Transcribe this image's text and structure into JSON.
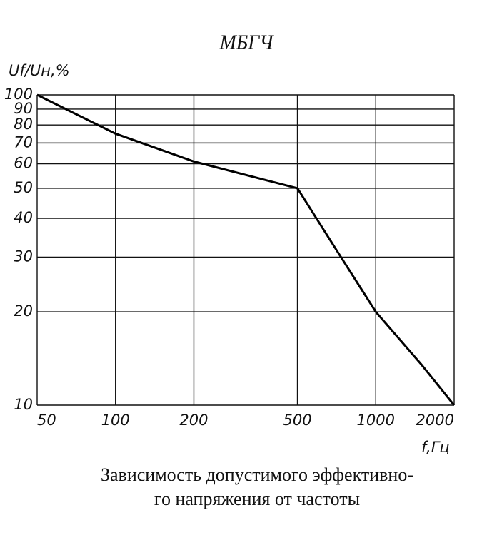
{
  "chart_data": {
    "type": "line",
    "title": "МБГЧ",
    "y_label": "Uf/Uн,%",
    "x_label": "f,Гц",
    "caption": [
      "Зависимость допустимого эффективно-",
      "го напряжения от частоты"
    ],
    "x": [
      50,
      100,
      200,
      500,
      700,
      1000,
      1500,
      2000
    ],
    "series": [
      {
        "color": "#000000",
        "values": [
          100,
          75,
          61,
          50,
          32,
          20,
          13.5,
          10
        ]
      }
    ],
    "xlim": [
      50,
      2000
    ],
    "ylim": [
      10,
      100
    ],
    "xlog": true,
    "ylog": true,
    "grid": true,
    "xticks": [
      50,
      100,
      200,
      500,
      1000,
      2000
    ],
    "yticks": [
      10,
      20,
      30,
      40,
      50,
      60,
      70,
      80,
      90,
      100
    ]
  }
}
